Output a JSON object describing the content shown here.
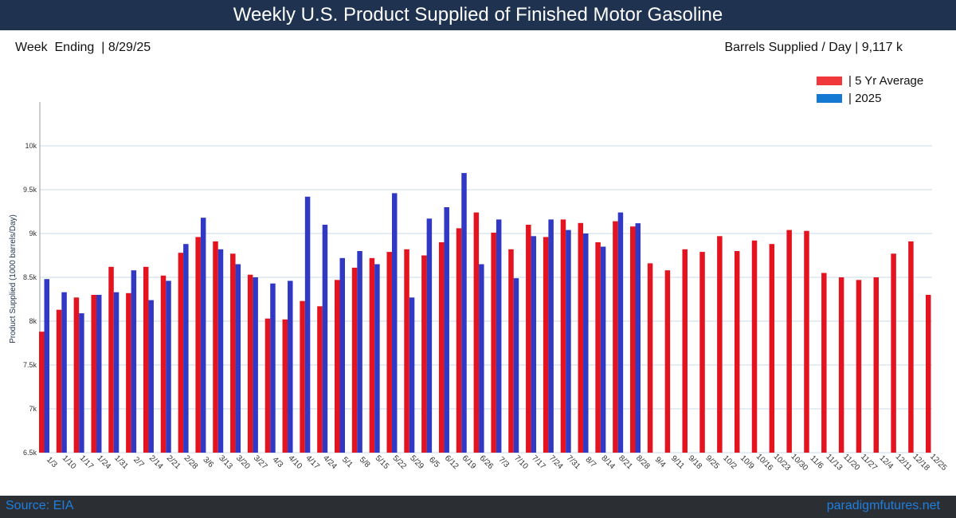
{
  "header": {
    "title": "Weekly U.S. Product Supplied of Finished Motor Gasoline",
    "week_ending": "Week  Ending  | 8/29/25",
    "barrels": "Barrels Supplied / Day | 9,117 k"
  },
  "footer": {
    "source": "Source: EIA",
    "site": "paradigmfutures.net"
  },
  "colors": {
    "avg": "#e3141f",
    "current": "#3138c4",
    "legend_avg": "#f0383b",
    "legend_current": "#1479d2"
  },
  "chart_data": {
    "type": "bar",
    "ylabel": "Product Supplied (1000 barrels/Day)",
    "ylim": [
      6500,
      10500
    ],
    "yticks": [
      6500,
      7000,
      7500,
      8000,
      8500,
      9000,
      9500,
      10000
    ],
    "ytick_labels": [
      "6.5k",
      "7k",
      "7.5k",
      "8k",
      "8.5k",
      "9k",
      "9.5k",
      "10k"
    ],
    "grid": true,
    "legend_position": "top-right",
    "categories": [
      "1/3",
      "1/10",
      "1/17",
      "1/24",
      "1/31",
      "2/7",
      "2/14",
      "2/21",
      "2/28",
      "3/6",
      "3/13",
      "3/20",
      "3/27",
      "4/3",
      "4/10",
      "4/17",
      "4/24",
      "5/1",
      "5/8",
      "5/15",
      "5/22",
      "5/29",
      "6/5",
      "6/12",
      "6/19",
      "6/26",
      "7/3",
      "7/10",
      "7/17",
      "7/24",
      "7/31",
      "8/7",
      "8/14",
      "8/21",
      "8/28",
      "9/4",
      "9/11",
      "9/18",
      "9/25",
      "10/2",
      "10/9",
      "10/16",
      "10/23",
      "10/30",
      "11/6",
      "11/13",
      "11/20",
      "11/27",
      "12/4",
      "12/11",
      "12/18",
      "12/25"
    ],
    "series": [
      {
        "name": "| 5 Yr Average",
        "values": [
          7880,
          8130,
          8270,
          8300,
          8620,
          8320,
          8620,
          8520,
          8780,
          8960,
          8910,
          8770,
          8530,
          8030,
          8020,
          8230,
          8170,
          8470,
          8610,
          8720,
          8790,
          8820,
          8750,
          8900,
          9060,
          9240,
          9010,
          8820,
          9100,
          8960,
          9160,
          9120,
          8900,
          9140,
          9080,
          8660,
          8580,
          8820,
          8790,
          8970,
          8800,
          8920,
          8880,
          9040,
          9030,
          8550,
          8500,
          8470,
          8500,
          8770,
          8910,
          8300
        ]
      },
      {
        "name": "| 2025",
        "values": [
          8480,
          8330,
          8090,
          8300,
          8330,
          8580,
          8240,
          8460,
          8880,
          9180,
          8820,
          8650,
          8500,
          8430,
          8460,
          9420,
          9100,
          8720,
          8800,
          8650,
          9460,
          8270,
          9170,
          9300,
          9690,
          8650,
          9160,
          8490,
          8970,
          9160,
          9040,
          9000,
          8850,
          9240,
          9117,
          null,
          null,
          null,
          null,
          null,
          null,
          null,
          null,
          null,
          null,
          null,
          null,
          null,
          null,
          null,
          null,
          null
        ]
      }
    ]
  }
}
